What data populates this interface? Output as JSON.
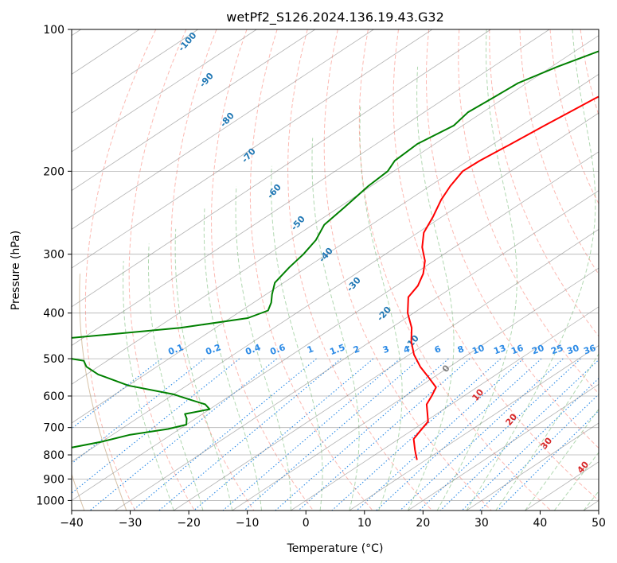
{
  "chart_data": {
    "type": "line",
    "subtype": "skew-t log-p diagram",
    "title": "wetPf2_S126.2024.136.19.43.G32",
    "xlabel": "Temperature (°C)",
    "ylabel": "Pressure (hPa)",
    "xlim": [
      -40,
      50
    ],
    "ylim": [
      1050,
      100
    ],
    "y_scale": "log",
    "x_ticks": [
      -40,
      -30,
      -20,
      -10,
      0,
      10,
      20,
      30,
      40,
      50
    ],
    "y_ticks": [
      100,
      200,
      300,
      400,
      500,
      600,
      700,
      800,
      900,
      1000
    ],
    "grid": true,
    "colors": {
      "temperature": "#ff0000",
      "dewpoint": "#008000",
      "isotherm": "#808080",
      "dry_adiabat": "#fa8072",
      "moist_adiabat": "#90c890",
      "mixing_ratio": "#2b8ae6",
      "theta_e": "#c8a882"
    },
    "series": [
      {
        "name": "Temperature",
        "color": "#ff0000",
        "points": [
          [
            100,
            -47
          ],
          [
            110,
            -49.4
          ],
          [
            125,
            -52.4
          ],
          [
            140,
            -54.4
          ],
          [
            150,
            -55.2
          ],
          [
            160,
            -56.0
          ],
          [
            175,
            -57.0
          ],
          [
            190,
            -58.0
          ],
          [
            200,
            -58.2
          ],
          [
            215,
            -56.5
          ],
          [
            230,
            -54.5
          ],
          [
            250,
            -51.5
          ],
          [
            270,
            -49.0
          ],
          [
            290,
            -45.5
          ],
          [
            310,
            -41.5
          ],
          [
            330,
            -38.5
          ],
          [
            350,
            -36.3
          ],
          [
            370,
            -35.0
          ],
          [
            400,
            -31.0
          ],
          [
            430,
            -26.5
          ],
          [
            460,
            -23.0
          ],
          [
            490,
            -19.2
          ],
          [
            520,
            -15.0
          ],
          [
            550,
            -10.5
          ],
          [
            575,
            -7.0
          ],
          [
            600,
            -5.5
          ],
          [
            625,
            -4.2
          ],
          [
            650,
            -2.0
          ],
          [
            680,
            0.5
          ],
          [
            710,
            1.5
          ],
          [
            740,
            2.5
          ],
          [
            780,
            5.5
          ],
          [
            800,
            7.0
          ],
          [
            820,
            8.5
          ]
        ]
      },
      {
        "name": "Dewpoint",
        "color": "#008000",
        "points": [
          [
            100,
            -62
          ],
          [
            110,
            -65.5
          ],
          [
            120,
            -69.0
          ],
          [
            130,
            -71.5
          ],
          [
            140,
            -72.0
          ],
          [
            150,
            -72.5
          ],
          [
            160,
            -71.5
          ],
          [
            175,
            -73.0
          ],
          [
            190,
            -72.5
          ],
          [
            200,
            -71.0
          ],
          [
            215,
            -70.5
          ],
          [
            240,
            -69.0
          ],
          [
            260,
            -68.0
          ],
          [
            280,
            -65.5
          ],
          [
            300,
            -64.0
          ],
          [
            320,
            -63.0
          ],
          [
            345,
            -61.5
          ],
          [
            365,
            -59.0
          ],
          [
            380,
            -57.0
          ],
          [
            395,
            -55.5
          ],
          [
            410,
            -57.0
          ],
          [
            430,
            -66.0
          ],
          [
            460,
            -88.0
          ],
          [
            475,
            -91.0
          ],
          [
            490,
            -82.0
          ],
          [
            505,
            -74.0
          ],
          [
            520,
            -72.0
          ],
          [
            540,
            -68.0
          ],
          [
            570,
            -60.0
          ],
          [
            595,
            -50.0
          ],
          [
            610,
            -46.0
          ],
          [
            625,
            -42.0
          ],
          [
            640,
            -40.0
          ],
          [
            655,
            -43.0
          ],
          [
            670,
            -41.5
          ],
          [
            690,
            -40.0
          ],
          [
            705,
            -42.0
          ],
          [
            725,
            -47.0
          ],
          [
            750,
            -50.0
          ],
          [
            780,
            -55.0
          ],
          [
            805,
            -61.0
          ],
          [
            815,
            -74.0
          ],
          [
            830,
            -100.5
          ]
        ]
      }
    ],
    "dry_adiabat_labels": [
      "-100",
      "-90",
      "-80",
      "-70",
      "-60",
      "-50",
      "-40",
      "-30",
      "-20",
      "-10"
    ],
    "moist_adiabat_labels": [
      "0",
      "10",
      "20",
      "30",
      "40"
    ],
    "mixing_ratio_labels": [
      "0.1",
      "0.2",
      "0.4",
      "0.6",
      "1",
      "1.5",
      "2",
      "3",
      "4",
      "6",
      "8",
      "10",
      "13",
      "16",
      "20",
      "25",
      "30",
      "36"
    ]
  }
}
